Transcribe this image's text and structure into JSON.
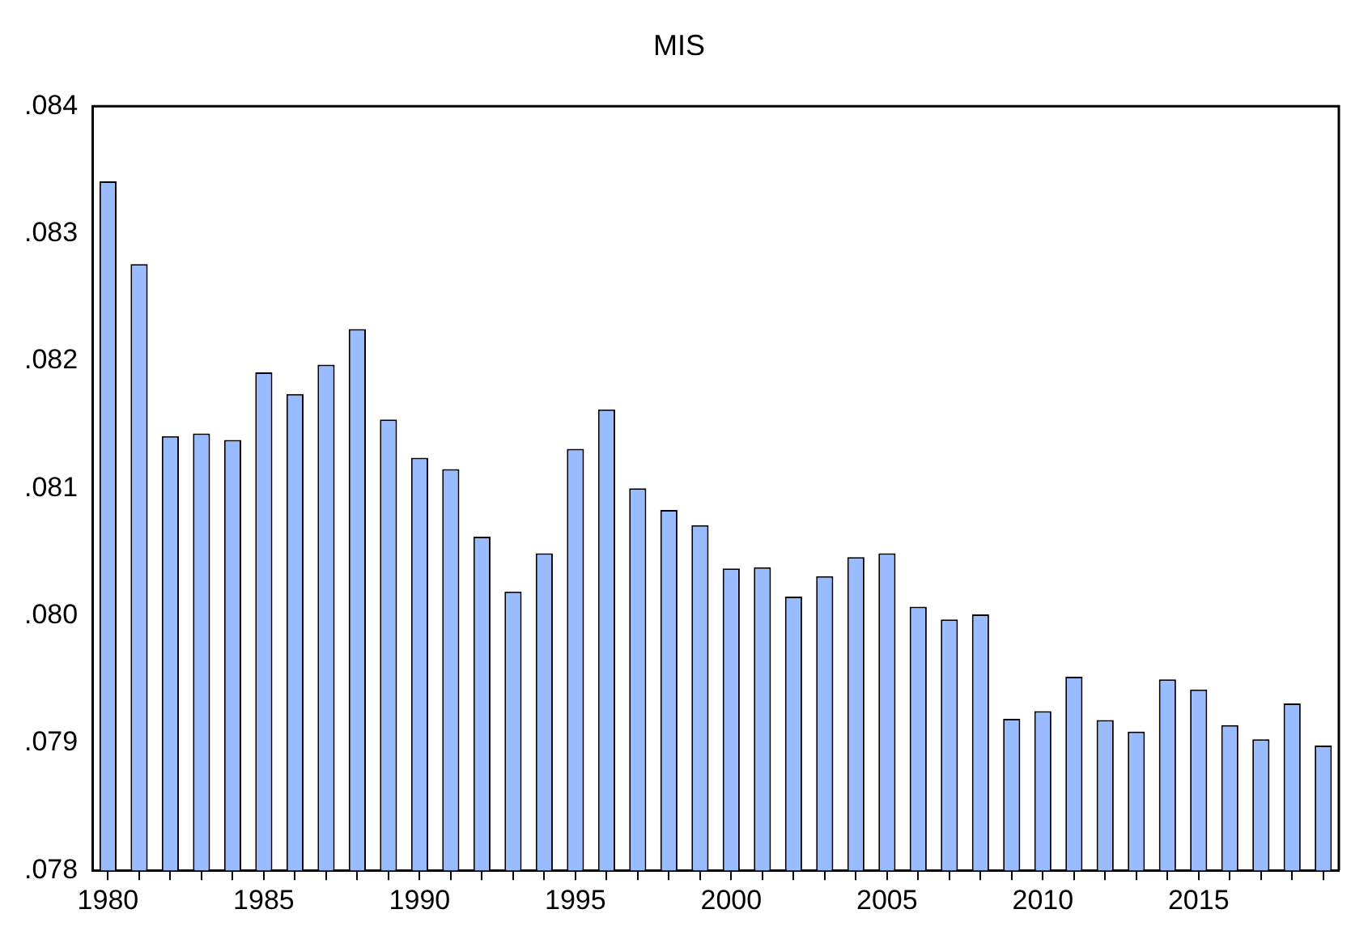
{
  "chart_data": {
    "type": "bar",
    "title": "MIS",
    "categories": [
      "1980",
      null,
      null,
      null,
      null,
      "1985",
      null,
      null,
      null,
      null,
      "1990",
      null,
      null,
      null,
      null,
      "1995",
      null,
      null,
      null,
      null,
      "2000",
      null,
      null,
      null,
      null,
      "2005",
      null,
      null,
      null,
      null,
      "2010",
      null,
      null,
      null,
      null,
      "2015",
      null,
      null,
      null,
      null
    ],
    "values": [
      0.08341,
      0.08276,
      0.08141,
      0.08143,
      0.08138,
      0.08191,
      0.08174,
      0.08197,
      0.08225,
      0.08154,
      0.08124,
      0.08115,
      0.08062,
      0.08019,
      0.08049,
      0.08131,
      0.08162,
      0.081,
      0.08083,
      0.08071,
      0.08037,
      0.08038,
      0.08015,
      0.08031,
      0.08046,
      0.08049,
      0.08007,
      0.07997,
      0.08001,
      0.07919,
      0.07925,
      0.07952,
      0.07918,
      0.07909,
      0.0795,
      0.07942,
      0.07914,
      0.07903,
      0.07931,
      0.07898
    ],
    "color": "#99bbff",
    "ylim": [
      0.078,
      0.084
    ],
    "yticks": [
      {
        "value": 0.078,
        "label": ".078"
      },
      {
        "value": 0.079,
        "label": ".079"
      },
      {
        "value": 0.08,
        "label": ".080"
      },
      {
        "value": 0.081,
        "label": ".081"
      },
      {
        "value": 0.082,
        "label": ".082"
      },
      {
        "value": 0.083,
        "label": ".083"
      },
      {
        "value": 0.084,
        "label": ".084"
      }
    ]
  }
}
